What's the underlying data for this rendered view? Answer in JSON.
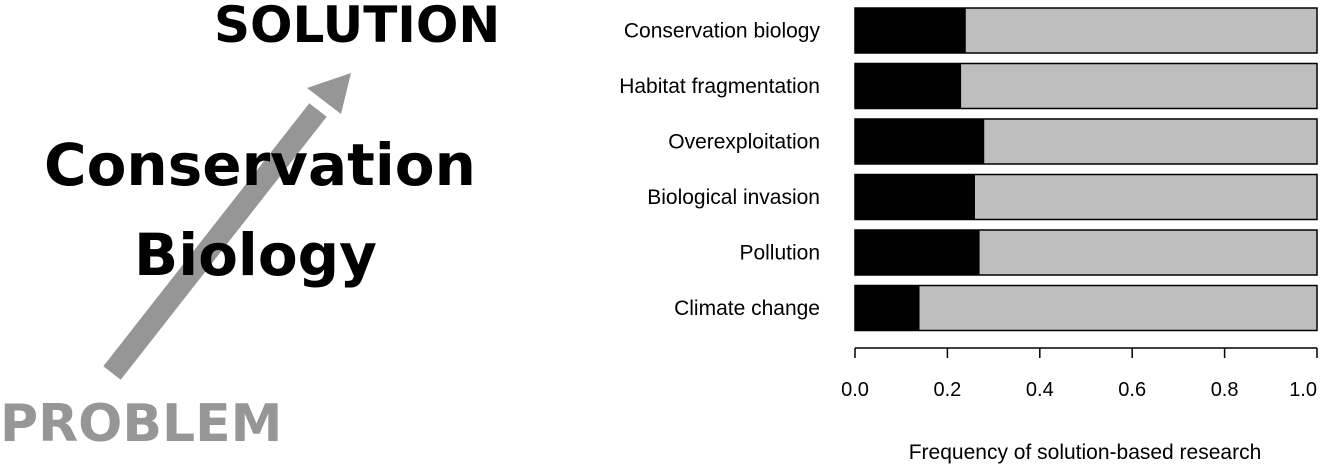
{
  "diagram": {
    "top_label": "SOLUTION",
    "middle_label_line1": "Conservation",
    "middle_label_line2": "Biology",
    "bottom_label": "PROBLEM",
    "arrow_color": "#969696"
  },
  "chart_data": {
    "type": "bar",
    "orientation": "horizontal",
    "stacked": true,
    "categories": [
      "Conservation biology",
      "Habitat fragmentation",
      "Overexploitation",
      "Biological invasion",
      "Pollution",
      "Climate change"
    ],
    "series": [
      {
        "values": [
          0.24,
          0.23,
          0.28,
          0.26,
          0.27,
          0.14
        ],
        "color": "#000000"
      },
      {
        "values": [
          0.76,
          0.77,
          0.72,
          0.74,
          0.73,
          0.86
        ],
        "color": "#bebebe"
      }
    ],
    "xlim": [
      0,
      1
    ],
    "xticks": [
      "0.0",
      "0.2",
      "0.4",
      "0.6",
      "0.8",
      "1.0"
    ],
    "xlabel": "Frequency of solution-based research",
    "ylabel": "",
    "title": ""
  }
}
